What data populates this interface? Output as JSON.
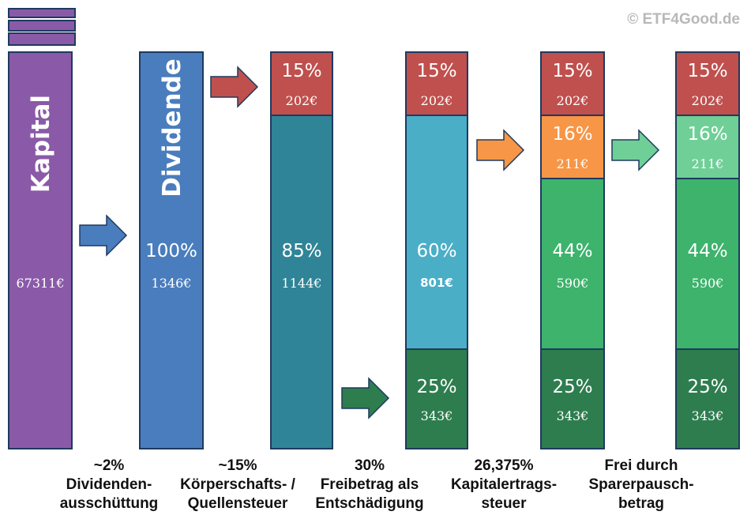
{
  "watermark": "© ETF4Good.de",
  "colors": {
    "kapital": "#8a5aa8",
    "dividende": "#4a7dbd",
    "tax_red": "#c0504d",
    "teal_dark": "#2f8597",
    "teal_light": "#4aaec7",
    "green_dark": "#2e7d4f",
    "green_mid": "#3db36c",
    "orange": "#f79646",
    "green_light": "#6fcf97",
    "border": "#1e3a5f"
  },
  "columns": {
    "kapital": {
      "label": "Kapital",
      "amount": "67311€"
    },
    "dividende": {
      "label": "Dividende",
      "pct": "100%",
      "amount": "1346€"
    },
    "quellensteuer": {
      "top": {
        "pct": "15%",
        "amount": "202€"
      },
      "main": {
        "pct": "85%",
        "amount": "1144€"
      }
    },
    "freibetrag": {
      "top": {
        "pct": "15%",
        "amount": "202€"
      },
      "main": {
        "pct": "60%",
        "amount": "801€"
      },
      "bottom": {
        "pct": "25%",
        "amount": "343€"
      }
    },
    "kapitalertragssteuer": {
      "top": {
        "pct": "15%",
        "amount": "202€"
      },
      "tax": {
        "pct": "16%",
        "amount": "211€"
      },
      "main": {
        "pct": "44%",
        "amount": "590€"
      },
      "bottom": {
        "pct": "25%",
        "amount": "343€"
      }
    },
    "sparerpausch": {
      "top": {
        "pct": "15%",
        "amount": "202€"
      },
      "free": {
        "pct": "16%",
        "amount": "211€"
      },
      "main": {
        "pct": "44%",
        "amount": "590€"
      },
      "bottom": {
        "pct": "25%",
        "amount": "343€"
      }
    }
  },
  "captions": [
    {
      "line1": "~2%",
      "line2": "Dividenden-",
      "line3": "ausschüttung"
    },
    {
      "line1": "~15%",
      "line2": "Körperschafts- /",
      "line3": "Quellensteuer"
    },
    {
      "line1": "30%",
      "line2": "Freibetrag als",
      "line3": "Entschädigung"
    },
    {
      "line1": "26,375%",
      "line2": "Kapitalertrags-",
      "line3": "steuer"
    },
    {
      "line1": "Frei durch",
      "line2": "Sparerpausch-",
      "line3": "betrag"
    }
  ]
}
